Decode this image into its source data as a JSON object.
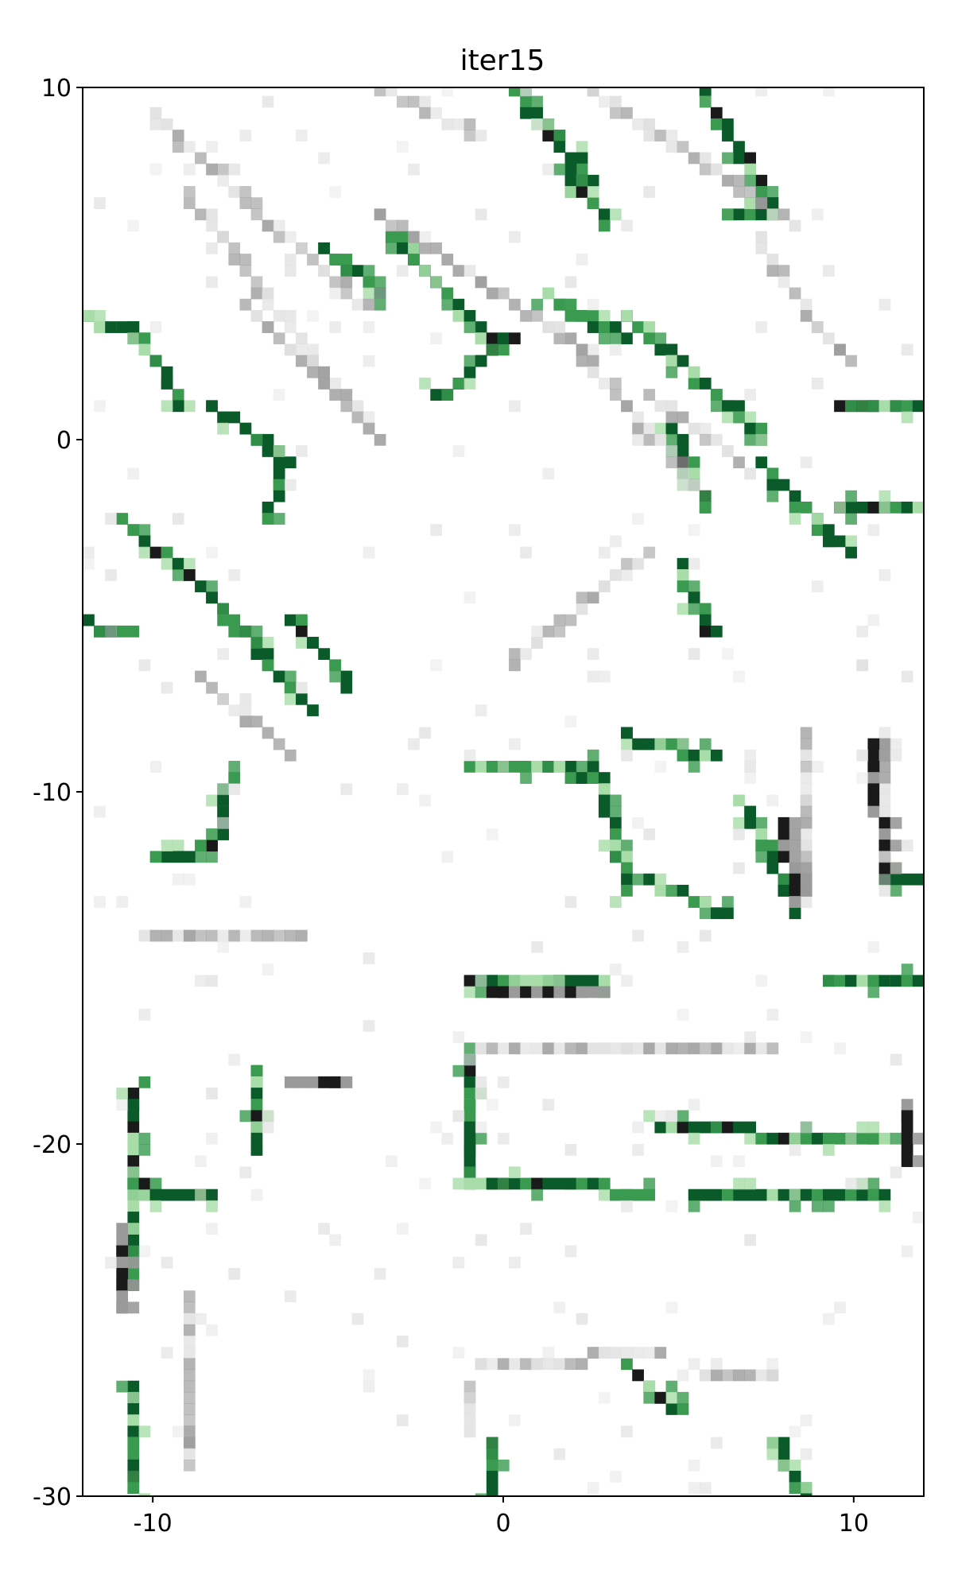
{
  "chart_data": {
    "type": "heatmap",
    "title": "iter15",
    "xlabel": "",
    "ylabel": "",
    "xlim": [
      -12,
      12
    ],
    "ylim": [
      -30,
      10
    ],
    "xticks": [
      -10,
      0,
      10
    ],
    "yticks": [
      10,
      0,
      -10,
      -20,
      -30
    ],
    "xtick_labels": [
      "-10",
      "0",
      "10"
    ],
    "ytick_labels": [
      "10",
      "0",
      "-10",
      "-20",
      "-30"
    ],
    "grid": false,
    "legend": "none",
    "colors": {
      "occupied_green": "#0a5a2a",
      "mid_green": "#3a9a50",
      "light_green": "#a8dca8",
      "dark": "#1a1a1a",
      "gray": "#9a9a9a",
      "light_gray": "#dedede"
    },
    "cell_size": 0.32,
    "description_series": [
      {
        "name": "occupied (green)",
        "segments": [
          {
            "x": [
              0.2,
              2.5
            ],
            "y": [
              10,
              7.5
            ]
          },
          {
            "x": [
              1.8,
              3.0
            ],
            "y": [
              7.6,
              6.2
            ]
          },
          {
            "x": [
              5.6,
              7.8
            ],
            "y": [
              10,
              6.4
            ]
          },
          {
            "x": [
              6.4,
              7.8
            ],
            "y": [
              6.4,
              6.6
            ]
          },
          {
            "x": [
              -3.2,
              0.0
            ],
            "y": [
              5.8,
              2.4
            ]
          },
          {
            "x": [
              -5.2,
              -3.4
            ],
            "y": [
              5.5,
              4.0
            ]
          },
          {
            "x": [
              1.2,
              3.4
            ],
            "y": [
              4.0,
              3.0
            ]
          },
          {
            "x": [
              3.4,
              6.4
            ],
            "y": [
              3.6,
              1.0
            ]
          },
          {
            "x": [
              6.4,
              7.4
            ],
            "y": [
              1.0,
              0.0
            ]
          },
          {
            "x": [
              -1.8,
              0.2
            ],
            "y": [
              1.2,
              3.0
            ]
          },
          {
            "x": [
              -12,
              -10.6
            ],
            "y": [
              3.4,
              3.2
            ]
          },
          {
            "x": [
              -10.6,
              -9.2
            ],
            "y": [
              3.2,
              1.0
            ]
          },
          {
            "x": [
              -8.4,
              -6.2
            ],
            "y": [
              1.0,
              -0.6
            ]
          },
          {
            "x": [
              -6.4,
              -6.6
            ],
            "y": [
              -0.6,
              -2.2
            ]
          },
          {
            "x": [
              -10.8,
              -9.4
            ],
            "y": [
              -2.4,
              -3.4
            ]
          },
          {
            "x": [
              -9.4,
              -7.0
            ],
            "y": [
              -3.4,
              -6.0
            ]
          },
          {
            "x": [
              -7.0,
              -5.6
            ],
            "y": [
              -6.0,
              -7.6
            ]
          },
          {
            "x": [
              -6.0,
              -4.4
            ],
            "y": [
              -5.0,
              -7.0
            ]
          },
          {
            "x": [
              -7.8,
              -8.2
            ],
            "y": [
              -9.6,
              -11.6
            ]
          },
          {
            "x": [
              -8.2,
              -9.8
            ],
            "y": [
              -11.6,
              -11.8
            ]
          },
          {
            "x": [
              -12,
              -10.6
            ],
            "y": [
              -5.2,
              -5.6
            ]
          },
          {
            "x": [
              4.8,
              5.8
            ],
            "y": [
              0.4,
              -2.0
            ]
          },
          {
            "x": [
              5.0,
              6.0
            ],
            "y": [
              -3.6,
              -5.6
            ]
          },
          {
            "x": [
              7.4,
              9.8
            ],
            "y": [
              -0.8,
              -3.2
            ]
          },
          {
            "x": [
              -1.0,
              2.6
            ],
            "y": [
              -9.2,
              -9.5
            ]
          },
          {
            "x": [
              3.4,
              6.0
            ],
            "y": [
              -8.4,
              -9.0
            ]
          },
          {
            "x": [
              2.6,
              3.6
            ],
            "y": [
              -9.2,
              -12.8
            ]
          },
          {
            "x": [
              9.6,
              12.0
            ],
            "y": [
              -1.8,
              -1.8
            ]
          },
          {
            "x": [
              9.6,
              12.0
            ],
            "y": [
              1.0,
              1.0
            ]
          },
          {
            "x": [
              10.8,
              12.0
            ],
            "y": [
              -12.6,
              -12.6
            ]
          },
          {
            "x": [
              6.8,
              8.4
            ],
            "y": [
              -10.2,
              -13.4
            ]
          },
          {
            "x": [
              4.2,
              6.4
            ],
            "y": [
              -12.6,
              -13.4
            ]
          },
          {
            "x": [
              -1.0,
              2.8
            ],
            "y": [
              -15.4,
              -15.4
            ]
          },
          {
            "x": [
              -1.0,
              -1.0
            ],
            "y": [
              -17.6,
              -21.0
            ]
          },
          {
            "x": [
              -1.0,
              4.0
            ],
            "y": [
              -21.2,
              -21.3
            ]
          },
          {
            "x": [
              4.4,
              11.0
            ],
            "y": [
              -19.6,
              -19.8
            ]
          },
          {
            "x": [
              5.4,
              11.0
            ],
            "y": [
              -21.5,
              -21.5
            ]
          },
          {
            "x": [
              9.2,
              12.0
            ],
            "y": [
              -15.4,
              -15.4
            ]
          },
          {
            "x": [
              -7.0,
              -7.2
            ],
            "y": [
              -17.8,
              -20.2
            ]
          },
          {
            "x": [
              -10.4,
              -10.6
            ],
            "y": [
              -18.2,
              -24.0
            ]
          },
          {
            "x": [
              -10.6,
              -8.4
            ],
            "y": [
              -21.2,
              -21.6
            ]
          },
          {
            "x": [
              -10.6,
              -10.4
            ],
            "y": [
              -27.0,
              -30.0
            ]
          },
          {
            "x": [
              -0.3,
              -0.3
            ],
            "y": [
              -28.6,
              -30.0
            ]
          },
          {
            "x": [
              3.6,
              5.0
            ],
            "y": [
              -26.4,
              -27.6
            ]
          },
          {
            "x": [
              7.8,
              8.6
            ],
            "y": [
              -28.4,
              -30.0
            ]
          }
        ]
      },
      {
        "name": "free-space ghost (gray)",
        "segments": [
          {
            "x": [
              -10.0,
              -4.0
            ],
            "y": [
              9.2,
              3.8
            ]
          },
          {
            "x": [
              -9.0,
              -3.6
            ],
            "y": [
              7.0,
              0.0
            ]
          },
          {
            "x": [
              -7.4,
              -3.8
            ],
            "y": [
              3.8,
              0.4
            ]
          },
          {
            "x": [
              -3.4,
              -0.6
            ],
            "y": [
              10,
              8.6
            ]
          },
          {
            "x": [
              -3.6,
              2.6
            ],
            "y": [
              6.4,
              2.4
            ]
          },
          {
            "x": [
              2.4,
              8.2
            ],
            "y": [
              10,
              6.2
            ]
          },
          {
            "x": [
              1.6,
              5.4
            ],
            "y": [
              3.2,
              -1.2
            ]
          },
          {
            "x": [
              4.0,
              7.0
            ],
            "y": [
              1.4,
              -0.8
            ]
          },
          {
            "x": [
              7.2,
              9.8
            ],
            "y": [
              5.6,
              2.2
            ]
          },
          {
            "x": [
              0.2,
              4.0
            ],
            "y": [
              -6.4,
              -3.2
            ]
          },
          {
            "x": [
              -8.6,
              -6.0
            ],
            "y": [
              -6.8,
              -9.0
            ]
          },
          {
            "x": [
              -10.2,
              -5.8
            ],
            "y": [
              -14.2,
              -14.2
            ]
          },
          {
            "x": [
              -0.8,
              4.2
            ],
            "y": [
              -17.4,
              -17.4
            ]
          },
          {
            "x": [
              4.6,
              7.6
            ],
            "y": [
              -17.4,
              -17.4
            ]
          },
          {
            "x": [
              -0.8,
              4.4
            ],
            "y": [
              -26.2,
              -26.0
            ]
          },
          {
            "x": [
              5.6,
              7.8
            ],
            "y": [
              -26.5,
              -26.5
            ]
          },
          {
            "x": [
              -1.0,
              -1.0
            ],
            "y": [
              -26.8,
              -28.2
            ]
          },
          {
            "x": [
              8.6,
              8.6
            ],
            "y": [
              -8.4,
              -13.2
            ]
          },
          {
            "x": [
              11.0,
              11.0
            ],
            "y": [
              -8.2,
              -12.8
            ]
          },
          {
            "x": [
              -9.0,
              -9.0
            ],
            "y": [
              -24.4,
              -29.2
            ]
          }
        ]
      },
      {
        "name": "dense dark blobs",
        "segments": [
          {
            "x": [
              10.6,
              10.8
            ],
            "y": [
              -8.6,
              -12.2
            ]
          },
          {
            "x": [
              8.0,
              8.4
            ],
            "y": [
              -11.0,
              -13.2
            ]
          },
          {
            "x": [
              -0.4,
              2.6
            ],
            "y": [
              -15.8,
              -15.8
            ]
          },
          {
            "x": [
              -6.0,
              -4.4
            ],
            "y": [
              -18.4,
              -18.4
            ]
          },
          {
            "x": [
              11.4,
              11.6
            ],
            "y": [
              -18.8,
              -20.4
            ]
          },
          {
            "x": [
              -11.0,
              -11.0
            ],
            "y": [
              -22.4,
              -24.8
            ]
          }
        ]
      }
    ]
  }
}
